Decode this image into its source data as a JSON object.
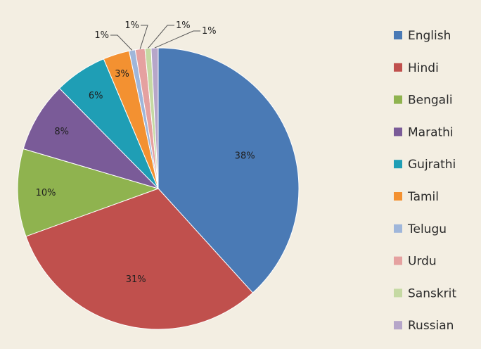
{
  "chart_data": {
    "type": "pie",
    "title": "",
    "legend_position": "right",
    "slices": [
      {
        "name": "English",
        "value": 38,
        "label": "38%",
        "color": "#4a7ab5"
      },
      {
        "name": "Hindi",
        "value": 31,
        "label": "31%",
        "color": "#c0504d"
      },
      {
        "name": "Bengali",
        "value": 10,
        "label": "10%",
        "color": "#8fb34f"
      },
      {
        "name": "Marathi",
        "value": 8,
        "label": "8%",
        "color": "#7a5b98"
      },
      {
        "name": "Gujrathi",
        "value": 6,
        "label": "6%",
        "color": "#1f9eb5"
      },
      {
        "name": "Tamil",
        "value": 3,
        "label": "3%",
        "color": "#f39131"
      },
      {
        "name": "Telugu",
        "value": 0.7,
        "label": "1%",
        "color": "#9fb6da"
      },
      {
        "name": "Urdu",
        "value": 1.1,
        "label": "1%",
        "color": "#e5a1a0"
      },
      {
        "name": "Sanskrit",
        "value": 0.7,
        "label": "1%",
        "color": "#c5d9a3"
      },
      {
        "name": "Russian",
        "value": 0.8,
        "label": "1%",
        "color": "#b6a6c9"
      }
    ]
  }
}
